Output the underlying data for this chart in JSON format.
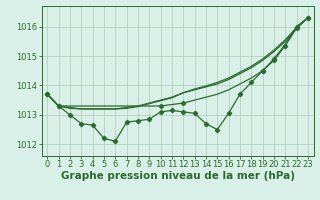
{
  "hours": [
    0,
    1,
    2,
    3,
    4,
    5,
    6,
    7,
    8,
    9,
    10,
    11,
    12,
    13,
    14,
    15,
    16,
    17,
    18,
    19,
    20,
    21,
    22,
    23
  ],
  "series_jagged": [
    1013.7,
    1013.3,
    1013.0,
    1012.7,
    1012.65,
    1012.2,
    1012.1,
    1012.75,
    1012.8,
    1012.85,
    1013.1,
    1013.15,
    1013.1,
    1013.05,
    1012.7,
    1012.5,
    1013.05,
    1013.7,
    1014.1,
    1014.5,
    1014.85,
    1015.35,
    1015.95,
    1016.3
  ],
  "series_smooth1": [
    1013.7,
    1013.3,
    1013.25,
    1013.2,
    1013.2,
    1013.2,
    1013.2,
    1013.25,
    1013.3,
    1013.4,
    1013.5,
    1013.6,
    1013.75,
    1013.85,
    1013.95,
    1014.05,
    1014.2,
    1014.4,
    1014.6,
    1014.85,
    1015.15,
    1015.5,
    1015.95,
    1016.3
  ],
  "series_smooth2": [
    1013.7,
    1013.3,
    1013.22,
    1013.2,
    1013.2,
    1013.2,
    1013.2,
    1013.22,
    1013.28,
    1013.38,
    1013.48,
    1013.58,
    1013.75,
    1013.88,
    1013.98,
    1014.1,
    1014.25,
    1014.45,
    1014.65,
    1014.9,
    1015.2,
    1015.55,
    1015.97,
    1016.3
  ],
  "series_straight": [
    1013.7,
    1013.3,
    1013.3,
    1013.3,
    1013.3,
    1013.3,
    1013.3,
    1013.3,
    1013.3,
    1013.3,
    1013.3,
    1013.35,
    1013.4,
    1013.5,
    1013.6,
    1013.7,
    1013.85,
    1014.05,
    1014.25,
    1014.5,
    1014.9,
    1015.4,
    1016.0,
    1016.3
  ],
  "straight_markers_x": [
    0,
    1,
    10,
    12,
    19,
    20,
    22,
    23
  ],
  "straight_markers_y": [
    1013.7,
    1013.3,
    1013.3,
    1013.4,
    1014.5,
    1014.9,
    1016.0,
    1016.3
  ],
  "line_color": "#2d6a2d",
  "bg_color": "#d8f0e8",
  "grid_color": "#b0c8b8",
  "ylabel_ticks": [
    1012,
    1013,
    1014,
    1015,
    1016
  ],
  "ylim": [
    1011.6,
    1016.7
  ],
  "xlim": [
    -0.5,
    23.5
  ],
  "xlabel": "Graphe pression niveau de la mer (hPa)",
  "xlabel_fontsize": 7.5,
  "tick_fontsize": 6,
  "marker": "D",
  "markersize": 2.2,
  "linewidth": 0.9
}
